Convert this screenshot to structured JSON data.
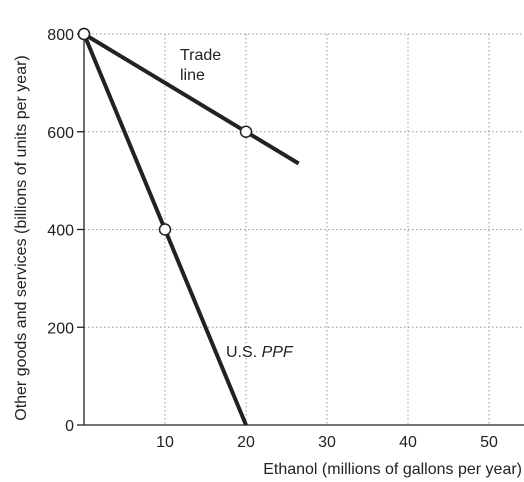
{
  "chart_data": {
    "type": "line",
    "title": "",
    "xlabel": "Ethanol (millions of gallons per year)",
    "ylabel": "Other goods and services (billions of units per year)",
    "xlim": [
      0,
      55
    ],
    "ylim": [
      0,
      800
    ],
    "x_ticks": [
      10,
      20,
      30,
      40,
      50
    ],
    "y_ticks": [
      0,
      200,
      400,
      600,
      800
    ],
    "grid": true,
    "series": [
      {
        "name": "U.S. PPF",
        "label_parts": [
          "U.S. ",
          "PPF"
        ],
        "x": [
          0,
          10,
          20
        ],
        "y": [
          800,
          400,
          0
        ],
        "markers": [
          [
            0,
            800
          ],
          [
            10,
            400
          ]
        ]
      },
      {
        "name": "Trade line",
        "label_lines": [
          "Trade",
          "line"
        ],
        "x": [
          0,
          20,
          26.5
        ],
        "y": [
          800,
          600,
          535
        ],
        "markers": [
          [
            0,
            800
          ],
          [
            20,
            600
          ]
        ]
      }
    ]
  }
}
